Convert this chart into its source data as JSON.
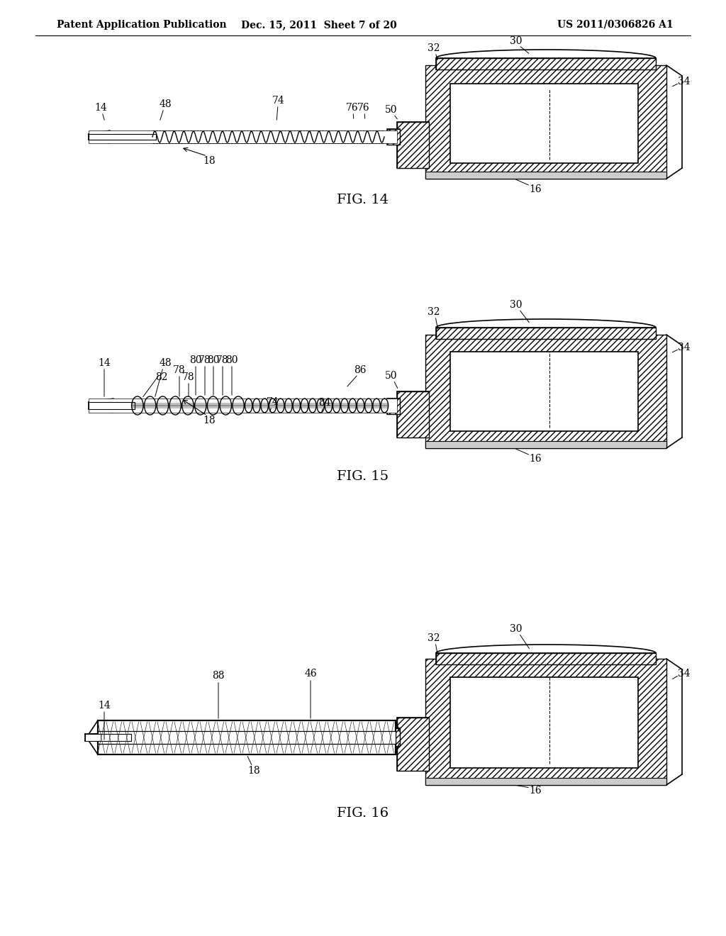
{
  "bg_color": "#ffffff",
  "text_color": "#000000",
  "line_color": "#000000",
  "header_left": "Patent Application Publication",
  "header_mid": "Dec. 15, 2011  Sheet 7 of 20",
  "header_right": "US 2011/0306826 A1",
  "fig14_label": "FIG. 14",
  "fig15_label": "FIG. 15",
  "fig16_label": "FIG. 16",
  "fig_label_fontsize": 14,
  "header_fontsize": 10,
  "annotation_fontsize": 10
}
